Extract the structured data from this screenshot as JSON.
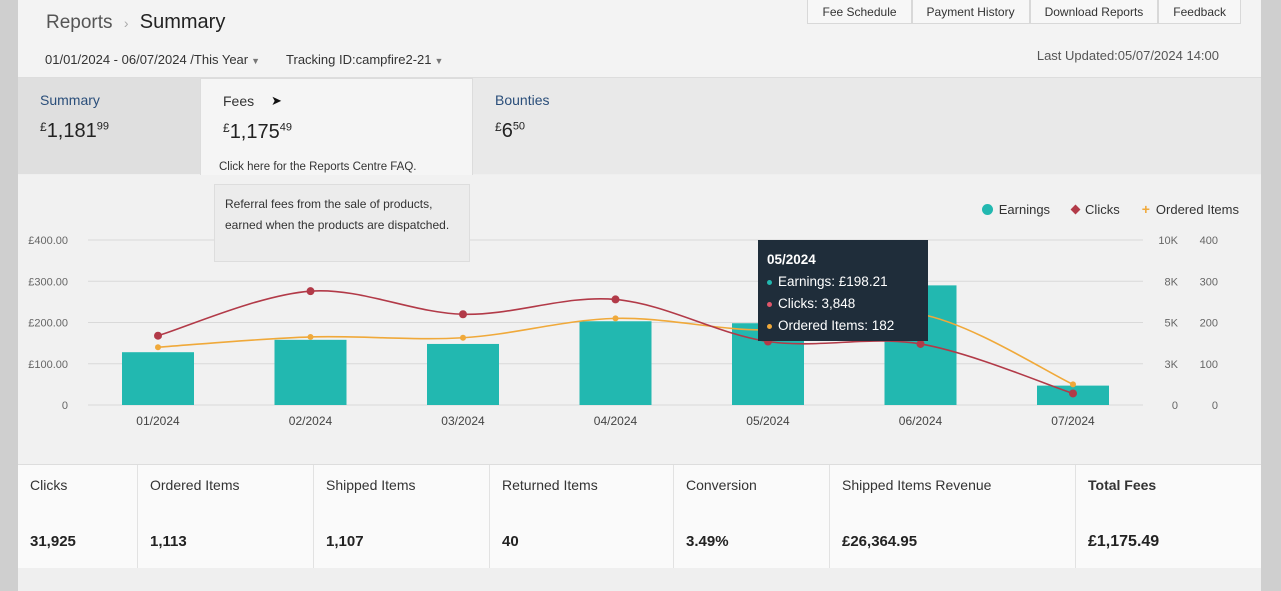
{
  "breadcrumb": {
    "root": "Reports",
    "separator": "›",
    "current": "Summary"
  },
  "top_nav": [
    "Fee Schedule",
    "Payment History",
    "Download Reports",
    "Feedback"
  ],
  "filters": {
    "date_range": "01/01/2024 - 06/07/2024 /This Year",
    "tracking": "Tracking ID:campfire2-21"
  },
  "last_updated": "Last Updated:05/07/2024 14:00",
  "tabs": {
    "summary": {
      "label": "Summary",
      "currency": "£",
      "whole": "1,181",
      "fraction": "99"
    },
    "fees": {
      "label": "Fees",
      "currency": "£",
      "whole": "1,175",
      "fraction": "49",
      "faq": "Click here for the Reports Centre FAQ."
    },
    "bounties": {
      "label": "Bounties",
      "currency": "£",
      "whole": "6",
      "fraction": "50"
    }
  },
  "fees_tooltip": "Referral fees from the sale of products, earned when the products are dispatched.",
  "legend": {
    "earnings": "Earnings",
    "clicks": "Clicks",
    "ordered": "Ordered Items"
  },
  "colors": {
    "earnings": "#22b8b0",
    "clicks": "#b23a48",
    "ordered": "#f0a93a",
    "tooltip_bg": "#1f2d3a"
  },
  "chart_tooltip": {
    "title": "05/2024",
    "earnings": "Earnings: £198.21",
    "clicks": "Clicks: 3,848",
    "ordered": "Ordered Items: 182"
  },
  "chart_data": {
    "type": "bar",
    "categories": [
      "01/2024",
      "02/2024",
      "03/2024",
      "04/2024",
      "05/2024",
      "06/2024",
      "07/2024"
    ],
    "series": [
      {
        "name": "Earnings",
        "type": "bar",
        "axis": "left",
        "values": [
          128,
          158,
          148,
          203,
          198.21,
          290,
          47
        ]
      },
      {
        "name": "Clicks",
        "type": "line",
        "axis": "right1",
        "values": [
          4200,
          6900,
          5500,
          6400,
          3848,
          3700,
          700
        ]
      },
      {
        "name": "Ordered Items",
        "type": "line",
        "axis": "right2",
        "values": [
          140,
          165,
          163,
          210,
          182,
          220,
          50
        ]
      }
    ],
    "left_axis": {
      "ticks": [
        "0",
        "£100.00",
        "£200.00",
        "£300.00",
        "£400.00"
      ],
      "range": [
        0,
        400
      ]
    },
    "right_axis_1": {
      "ticks": [
        "0",
        "3K",
        "5K",
        "8K",
        "10K"
      ],
      "range": [
        0,
        10000
      ]
    },
    "right_axis_2": {
      "ticks": [
        "0",
        "100",
        "200",
        "300",
        "400"
      ],
      "range": [
        0,
        400
      ]
    },
    "legend_position": "top-right",
    "grid": true
  },
  "metrics": [
    {
      "label": "Clicks",
      "value": "31,925"
    },
    {
      "label": "Ordered Items",
      "value": "1,113"
    },
    {
      "label": "Shipped Items",
      "value": "1,107"
    },
    {
      "label": "Returned Items",
      "value": "40"
    },
    {
      "label": "Conversion",
      "value": "3.49%"
    },
    {
      "label": "Shipped Items Revenue",
      "value": "£26,364.95"
    },
    {
      "label": "Total Fees",
      "value": "£1,175.49"
    }
  ]
}
